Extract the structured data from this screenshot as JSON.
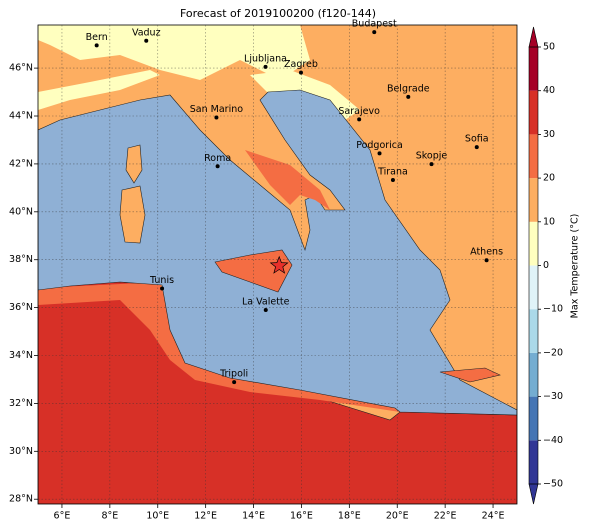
{
  "map": {
    "title": "Forecast of 2019100200 (f120-144)",
    "xlim": [
      5,
      25
    ],
    "ylim": [
      27.8,
      47.8
    ],
    "xticks": [
      {
        "value": 6,
        "label": "6°E"
      },
      {
        "value": 8,
        "label": "8°E"
      },
      {
        "value": 10,
        "label": "10°E"
      },
      {
        "value": 12,
        "label": "12°E"
      },
      {
        "value": 14,
        "label": "14°E"
      },
      {
        "value": 16,
        "label": "16°E"
      },
      {
        "value": 18,
        "label": "18°E"
      },
      {
        "value": 20,
        "label": "20°E"
      },
      {
        "value": 22,
        "label": "22°E"
      },
      {
        "value": 24,
        "label": "24°E"
      }
    ],
    "yticks": [
      {
        "value": 28,
        "label": "28°N"
      },
      {
        "value": 30,
        "label": "30°N"
      },
      {
        "value": 32,
        "label": "32°N"
      },
      {
        "value": 34,
        "label": "34°N"
      },
      {
        "value": 36,
        "label": "36°N"
      },
      {
        "value": 38,
        "label": "38°N"
      },
      {
        "value": 40,
        "label": "40°N"
      },
      {
        "value": 42,
        "label": "42°N"
      },
      {
        "value": 44,
        "label": "44°N"
      },
      {
        "value": 46,
        "label": "46°N"
      }
    ],
    "grid": true,
    "cities": [
      {
        "name": "Bern",
        "lon": 7.45,
        "lat": 46.95
      },
      {
        "name": "Vaduz",
        "lon": 9.52,
        "lat": 47.14
      },
      {
        "name": "Budapest",
        "lon": 19.04,
        "lat": 47.5
      },
      {
        "name": "Ljubljana",
        "lon": 14.5,
        "lat": 46.05
      },
      {
        "name": "Zagreb",
        "lon": 15.98,
        "lat": 45.81
      },
      {
        "name": "Belgrade",
        "lon": 20.46,
        "lat": 44.8
      },
      {
        "name": "San Marino",
        "lon": 12.45,
        "lat": 43.94
      },
      {
        "name": "Sarajevo",
        "lon": 18.41,
        "lat": 43.86
      },
      {
        "name": "Sofia",
        "lon": 23.32,
        "lat": 42.7
      },
      {
        "name": "Podgorica",
        "lon": 19.26,
        "lat": 42.44
      },
      {
        "name": "Skopje",
        "lon": 21.43,
        "lat": 41.99
      },
      {
        "name": "Roma",
        "lon": 12.5,
        "lat": 41.9
      },
      {
        "name": "Tirana",
        "lon": 19.82,
        "lat": 41.33
      },
      {
        "name": "Athens",
        "lon": 23.73,
        "lat": 37.98
      },
      {
        "name": "Tunis",
        "lon": 10.18,
        "lat": 36.8
      },
      {
        "name": "La Valette",
        "lon": 14.51,
        "lat": 35.9
      },
      {
        "name": "Tripoli",
        "lon": 13.19,
        "lat": 32.89
      }
    ],
    "star": {
      "lon": 15.07,
      "lat": 37.75,
      "color": "#e8302a"
    },
    "colorbar": {
      "label": "Max Temperature (°C)",
      "levels": [
        -50,
        -40,
        -30,
        -20,
        -10,
        0,
        10,
        20,
        30,
        40,
        50
      ],
      "colors": [
        "#313695",
        "#4575b4",
        "#74add1",
        "#abd9e9",
        "#e0f3f8",
        "#ffffbf",
        "#fdae61",
        "#f46d43",
        "#d73027",
        "#a50026"
      ],
      "ticks": [
        {
          "value": -50,
          "label": "−50"
        },
        {
          "value": -40,
          "label": "−40"
        },
        {
          "value": -30,
          "label": "−30"
        },
        {
          "value": -20,
          "label": "−20"
        },
        {
          "value": -10,
          "label": "−10"
        },
        0,
        10,
        20,
        30,
        40,
        50
      ]
    }
  }
}
